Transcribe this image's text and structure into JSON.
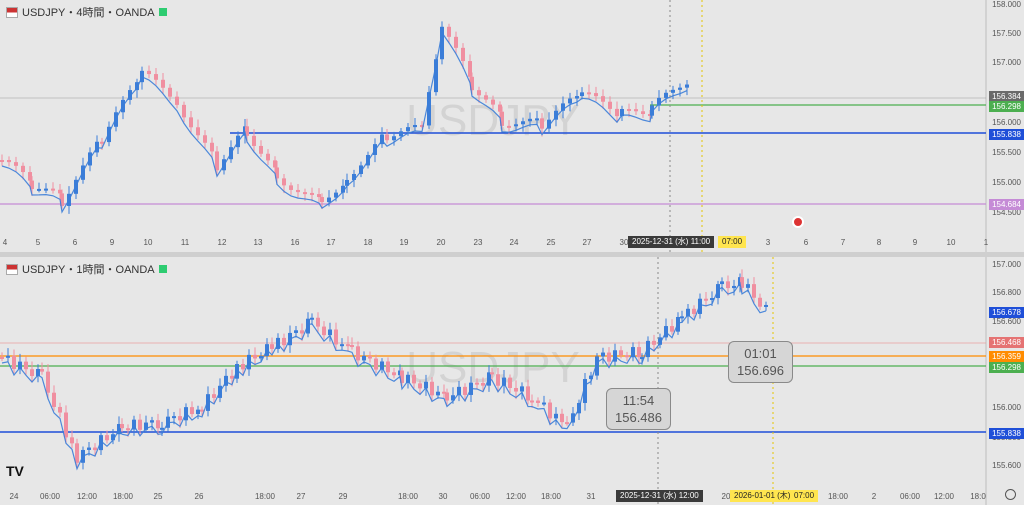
{
  "top": {
    "title": "USDJPY・4時間・OANDA",
    "y_ticks": [
      "158.000",
      "157.500",
      "157.000",
      "156.500",
      "156.000",
      "155.500",
      "155.000",
      "154.500"
    ],
    "price_labels": [
      {
        "text": "156.384",
        "color": "#6a6a6a"
      },
      {
        "text": "156.298",
        "color": "#4caf50"
      },
      {
        "text": "155.838",
        "color": "#1f4fd8"
      },
      {
        "text": "154.684",
        "color": "#c58bd6"
      }
    ],
    "x_ticks": [
      "4",
      "5",
      "6",
      "9",
      "10",
      "11",
      "12",
      "13",
      "16",
      "17",
      "18",
      "19",
      "20",
      "23",
      "24",
      "25",
      "27",
      "30",
      "3",
      "6",
      "7",
      "8",
      "9",
      "10",
      "1"
    ],
    "crosshair_date": "2025-12-31 (水)   11:00",
    "future_time": "07:00",
    "watermark": "USDJPY"
  },
  "bottom": {
    "title": "USDJPY・1時間・OANDA",
    "y_ticks": [
      "157.000",
      "156.800",
      "156.600",
      "156.400",
      "156.200",
      "156.000",
      "155.800",
      "155.600"
    ],
    "price_labels": [
      {
        "text": "156.678",
        "color": "#1f4fd8"
      },
      {
        "text": "156.468",
        "color": "#e57373"
      },
      {
        "text": "156.359",
        "color": "#ff8c00"
      },
      {
        "text": "156.298",
        "color": "#4caf50"
      },
      {
        "text": "155.838",
        "color": "#1f4fd8"
      }
    ],
    "x_ticks": [
      "24",
      "06:00",
      "12:00",
      "18:00",
      "25",
      "26",
      "18:00",
      "27",
      "29",
      "18:00",
      "30",
      "06:00",
      "12:00",
      "18:00",
      "31",
      "20",
      "2026-01-01 (木)",
      "07:00",
      "18:00",
      "2",
      "06:00",
      "12:00",
      "18:0"
    ],
    "crosshair_date": "2025-12-31 (水)   12:00",
    "future_date": "2026-01-01 (木)",
    "future_time": "07:00",
    "tooltips": [
      {
        "time": "11:54",
        "price": "156.486"
      },
      {
        "time": "01:01",
        "price": "156.696"
      }
    ],
    "watermark": "USDJPY",
    "logo": "TV"
  },
  "colors": {
    "up": "#3b7dd8",
    "down": "#f08fa0",
    "ma": "#3b7dd8",
    "blue_line": "#1f4fd8",
    "green_line": "#4caf50",
    "purple_line": "#c58bd6",
    "orange_line": "#ff8c00"
  }
}
